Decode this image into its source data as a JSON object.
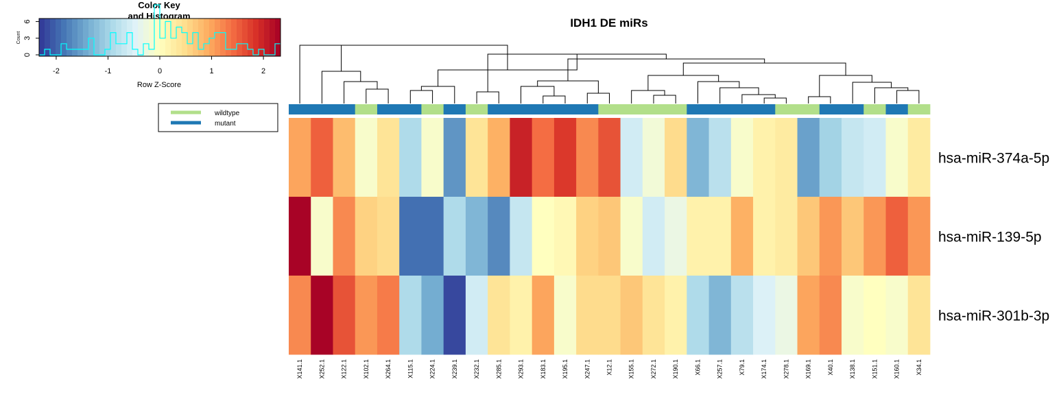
{
  "chart_data": {
    "type": "heatmap",
    "title": "IDH1 DE miRs",
    "columns": [
      "X141.1",
      "X252.1",
      "X122.1",
      "X102.1",
      "X264.1",
      "X115.1",
      "X224.1",
      "X239.1",
      "X232.1",
      "X285.1",
      "X293.1",
      "X183.1",
      "X195.1",
      "X247.1",
      "X12.1",
      "X155.1",
      "X272.1",
      "X190.1",
      "X66.1",
      "X257.1",
      "X79.1",
      "X174.1",
      "X278.1",
      "X169.1",
      "X40.1",
      "X138.1",
      "X151.1",
      "X160.1",
      "X34.1"
    ],
    "rows": [
      "hsa-miR-374a-5p",
      "hsa-miR-139-5p",
      "hsa-miR-301b-3p"
    ],
    "values": [
      [
        1.0,
        1.5,
        0.8,
        -0.1,
        0.4,
        -0.9,
        -0.1,
        -1.6,
        0.4,
        0.9,
        2.0,
        1.4,
        1.8,
        1.2,
        1.6,
        -0.6,
        -0.2,
        0.5,
        -1.3,
        -0.8,
        -0.1,
        0.2,
        0.3,
        -1.5,
        -1.0,
        -0.7,
        -0.6,
        -0.1,
        0.3
      ],
      [
        2.3,
        -0.1,
        1.2,
        0.6,
        0.5,
        -1.9,
        -1.9,
        -0.9,
        -1.3,
        -1.7,
        -0.7,
        0.0,
        0.1,
        0.6,
        0.7,
        -0.1,
        -0.6,
        -0.3,
        0.2,
        0.2,
        0.9,
        0.2,
        0.3,
        0.7,
        1.1,
        0.7,
        1.1,
        1.5,
        1.1
      ],
      [
        1.2,
        2.3,
        1.6,
        1.1,
        1.3,
        -0.9,
        -1.4,
        -2.2,
        -0.6,
        0.4,
        0.2,
        1.0,
        -0.1,
        0.5,
        0.5,
        0.7,
        0.4,
        0.2,
        -0.9,
        -1.3,
        -0.8,
        -0.5,
        -0.3,
        1.0,
        1.2,
        -0.1,
        0.0,
        -0.1,
        0.4
      ]
    ],
    "groups": [
      "mutant",
      "mutant",
      "mutant",
      "wildtype",
      "mutant",
      "mutant",
      "wildtype",
      "mutant",
      "wildtype",
      "mutant",
      "mutant",
      "mutant",
      "mutant",
      "mutant",
      "wildtype",
      "wildtype",
      "wildtype",
      "wildtype",
      "mutant",
      "mutant",
      "mutant",
      "mutant",
      "wildtype",
      "wildtype",
      "mutant",
      "mutant",
      "wildtype",
      "mutant",
      "wildtype"
    ],
    "legend": {
      "position": "left",
      "entries": [
        {
          "label": "wildtype",
          "color": "#b2df8a"
        },
        {
          "label": "mutant",
          "color": "#1f78b4"
        }
      ]
    },
    "color_key": {
      "title_line1": "Color Key",
      "title_line2": "and Histogram",
      "xlabel": "Row Z-Score",
      "ylabel": "Count",
      "xlim": [
        -2.33,
        2.33
      ],
      "xticks": [
        "-2",
        "-1",
        "0",
        "1",
        "2"
      ],
      "yticks": [
        "0",
        "3",
        "6"
      ],
      "histogram_line_color": "#00ffff"
    },
    "palette": [
      "#313695",
      "#4575b4",
      "#74add1",
      "#abd9e9",
      "#e0f3f8",
      "#ffffbf",
      "#fee090",
      "#fdae61",
      "#f46d43",
      "#d73027",
      "#a50026"
    ],
    "dendrogram": true
  }
}
